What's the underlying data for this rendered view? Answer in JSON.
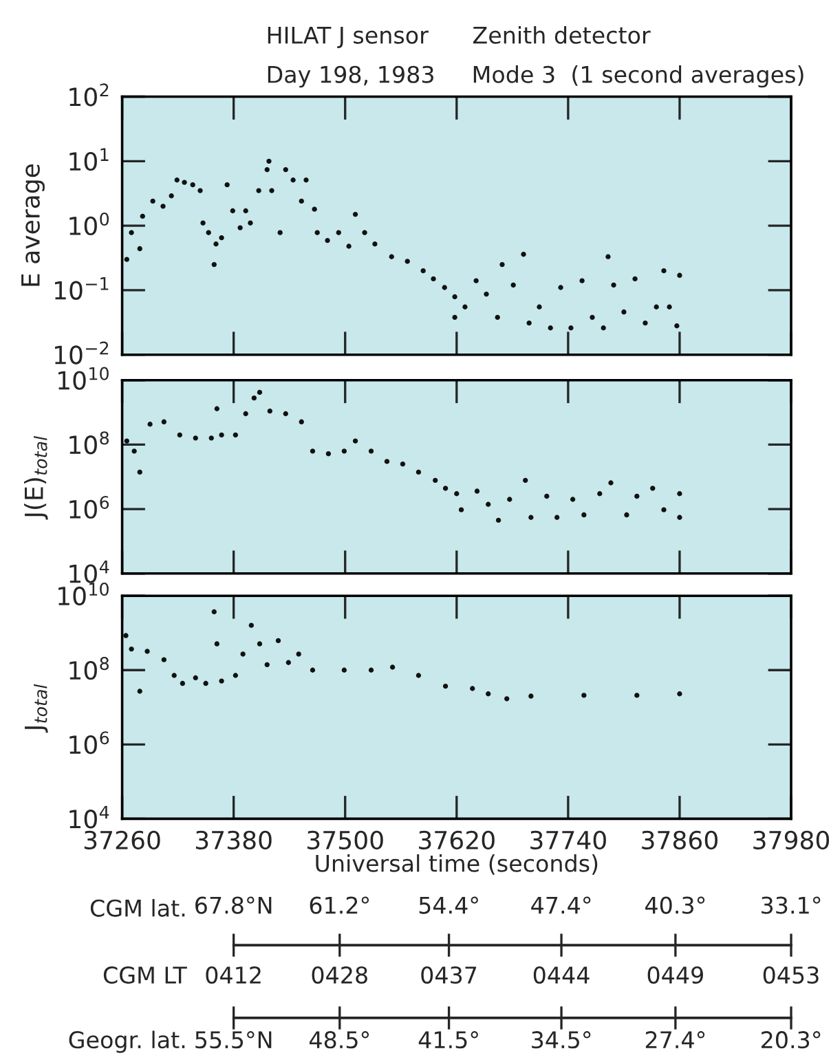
{
  "chart_data": [
    {
      "type": "scatter",
      "title": "HILAT J sensor      Zenith detector",
      "subtitle": "Day 198, 1983     Mode 3  (1 second averages)",
      "ylabel": "E average",
      "log": "y",
      "xlim": [
        37260,
        37980
      ],
      "ylim": [
        0.01,
        100
      ],
      "yticks": [
        {
          "value": 0.01,
          "label": "10$^{−2}$"
        },
        {
          "value": 0.1,
          "label": "10$^{−1}$"
        },
        {
          "value": 1,
          "label": "10$^{0}$"
        },
        {
          "value": 10,
          "label": "10$^{1}$"
        },
        {
          "value": 100,
          "label": "10$^{2}$"
        }
      ],
      "xticks": [
        37260,
        37380,
        37500,
        37620,
        37740,
        37860,
        37980
      ],
      "tick_labels": "y",
      "grid": false,
      "legend": false,
      "marker": "circle",
      "series": [
        {
          "color": "#111111",
          "x": [
            37265,
            37270,
            37279,
            37282,
            37293,
            37304,
            37313,
            37319,
            37327,
            37336,
            37344,
            37347,
            37353,
            37359,
            37361,
            37367,
            37373,
            37379,
            37387,
            37393,
            37398,
            37407,
            37416,
            37418,
            37421,
            37430,
            37436,
            37444,
            37453,
            37458,
            37467,
            37470,
            37481,
            37493,
            37504,
            37511,
            37521,
            37532,
            37550,
            37567,
            37584,
            37595,
            37607,
            37618,
            37618,
            37629,
            37641,
            37652,
            37664,
            37669,
            37681,
            37692,
            37698,
            37709,
            37721,
            37732,
            37743,
            37755,
            37766,
            37778,
            37783,
            37789,
            37800,
            37812,
            37823,
            37835,
            37843,
            37849,
            37857,
            37860
          ],
          "values": [
            0.3,
            0.78,
            0.44,
            1.4,
            2.4,
            2.0,
            2.9,
            5.1,
            4.7,
            4.3,
            3.5,
            1.1,
            0.78,
            0.25,
            0.52,
            0.65,
            4.3,
            1.7,
            0.93,
            1.7,
            1.1,
            3.5,
            7.4,
            10,
            3.5,
            0.78,
            7.4,
            5.1,
            2.4,
            5.1,
            1.8,
            0.78,
            0.59,
            0.78,
            0.48,
            1.5,
            0.78,
            0.52,
            0.33,
            0.28,
            0.2,
            0.15,
            0.11,
            0.079,
            0.038,
            0.055,
            0.14,
            0.087,
            0.038,
            0.25,
            0.12,
            0.36,
            0.031,
            0.055,
            0.026,
            0.11,
            0.026,
            0.14,
            0.038,
            0.026,
            0.33,
            0.12,
            0.046,
            0.15,
            0.031,
            0.055,
            0.2,
            0.055,
            0.028,
            0.17
          ]
        }
      ]
    },
    {
      "type": "scatter",
      "ylabel": "J(E)$_{total}$",
      "log": "y",
      "xlim": [
        37260,
        37980
      ],
      "ylim": [
        10000,
        10000000000
      ],
      "yticks": [
        {
          "value": 10000,
          "label": "10$^{4}$"
        },
        {
          "value": 1000000,
          "label": "10$^{6}$"
        },
        {
          "value": 100000000,
          "label": "10$^{8}$"
        },
        {
          "value": 10000000000,
          "label": "10$^{10}$"
        }
      ],
      "xticks": [
        37260,
        37380,
        37500,
        37620,
        37740,
        37860,
        37980
      ],
      "tick_labels": "y",
      "grid": false,
      "legend": false,
      "marker": "circle",
      "series": [
        {
          "color": "#111111",
          "x": [
            37265,
            37273,
            37279,
            37290,
            37305,
            37322,
            37339,
            37356,
            37362,
            37367,
            37382,
            37393,
            37402,
            37408,
            37419,
            37436,
            37453,
            37465,
            37482,
            37499,
            37511,
            37528,
            37545,
            37562,
            37579,
            37597,
            37608,
            37620,
            37625,
            37642,
            37654,
            37665,
            37677,
            37694,
            37700,
            37717,
            37728,
            37745,
            37757,
            37774,
            37786,
            37803,
            37814,
            37831,
            37843,
            37860,
            37860
          ],
          "values": [
            130000000,
            63000000,
            14000000,
            430000000,
            510000000,
            200000000,
            160000000,
            160000000,
            1300000000,
            200000000,
            200000000,
            910000000,
            2800000000,
            4200000000,
            1100000000,
            910000000,
            510000000,
            63000000,
            52000000,
            63000000,
            130000000,
            63000000,
            30000000,
            25000000,
            14000000,
            7800000,
            4400000,
            3000000,
            950000,
            3600000,
            1400000,
            450000,
            2000000,
            7800000,
            550000,
            2500000,
            550000,
            2000000,
            660000,
            3000000,
            6500000,
            660000,
            2500000,
            4400000,
            950000,
            3000000,
            550000
          ]
        }
      ]
    },
    {
      "type": "scatter",
      "ylabel": "J$_{total}$",
      "xlabel": "Universal time (seconds)",
      "log": "y",
      "xlim": [
        37260,
        37980
      ],
      "ylim": [
        10000,
        10000000000
      ],
      "yticks": [
        {
          "value": 10000,
          "label": "10$^{4}$"
        },
        {
          "value": 1000000,
          "label": "10$^{6}$"
        },
        {
          "value": 100000000,
          "label": "10$^{8}$"
        },
        {
          "value": 10000000000,
          "label": "10$^{10}$"
        }
      ],
      "xticks": [
        37260,
        37380,
        37500,
        37620,
        37740,
        37860,
        37980
      ],
      "grid": false,
      "legend": false,
      "marker": "circle",
      "x2label": "CGM lat.",
      "x2lim": [
        67.8,
        33.1
      ],
      "x2ticks": [
        {
          "value": 67.8,
          "label": "67.8°N"
        },
        {
          "value": 61.2,
          "label": "61.2°"
        },
        {
          "value": 54.4,
          "label": "54.4°"
        },
        {
          "value": 47.4,
          "label": "47.4°"
        },
        {
          "value": 40.3,
          "label": "40.3°"
        },
        {
          "value": 33.1,
          "label": "33.1°"
        }
      ],
      "annotations": [
        "CGM LT",
        "0412",
        "0428",
        "0437",
        "0444",
        "0449",
        "0453",
        "Geogr. lat.",
        "55.5°N",
        "48.5°",
        "41.5°",
        "34.5°",
        "27.4°",
        "20.3°"
      ],
      "series": [
        {
          "color": "#111111",
          "x": [
            37264,
            37270,
            37279,
            37287,
            37305,
            37316,
            37325,
            37339,
            37350,
            37359,
            37362,
            37367,
            37382,
            37390,
            37399,
            37408,
            37416,
            37428,
            37439,
            37450,
            37465,
            37499,
            37528,
            37551,
            37579,
            37608,
            37637,
            37654,
            37674,
            37700,
            37757,
            37814,
            37860
          ],
          "values": [
            850000000,
            370000000,
            27000000,
            320000000,
            190000000,
            72000000,
            44000000,
            62000000,
            44000000,
            3700000000,
            510000000,
            51000000,
            72000000,
            270000000,
            1600000000,
            510000000,
            140000000,
            620000000,
            160000000,
            270000000,
            100000000,
            100000000,
            100000000,
            120000000,
            72000000,
            37000000,
            32000000,
            23000000,
            17000000,
            20000000,
            21000000,
            21000000,
            23000000
          ]
        }
      ]
    }
  ]
}
